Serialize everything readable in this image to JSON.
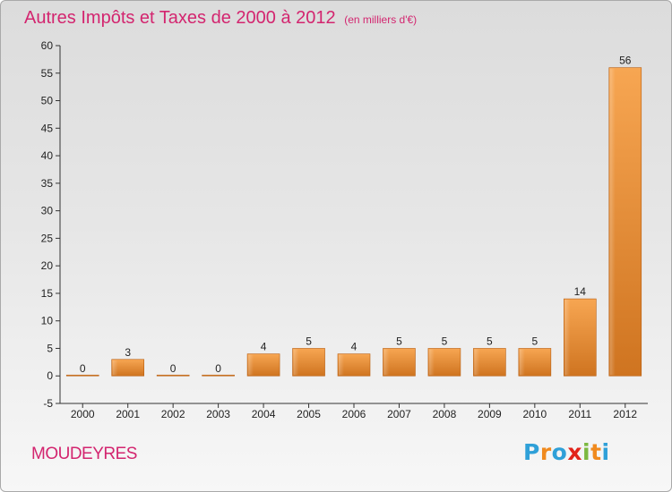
{
  "chart_data": {
    "type": "bar",
    "title": "Autres Impôts et Taxes de 2000 à 2012",
    "subtitle": "(en milliers d'€)",
    "categories": [
      "2000",
      "2001",
      "2002",
      "2003",
      "2004",
      "2005",
      "2006",
      "2007",
      "2008",
      "2009",
      "2010",
      "2011",
      "2012"
    ],
    "values": [
      0,
      3,
      0,
      0,
      4,
      5,
      4,
      5,
      5,
      5,
      5,
      14,
      56
    ],
    "ylim": [
      -5,
      60
    ],
    "yticks": [
      -5,
      0,
      5,
      10,
      15,
      20,
      25,
      30,
      35,
      40,
      45,
      50,
      55,
      60
    ],
    "grid": false,
    "bar_color": "#f2983a",
    "bar_color_dark": "#c96a17"
  },
  "footer": {
    "commune": "MOUDEYRES",
    "logo_letters": [
      "P",
      "r",
      "o",
      "x",
      "i",
      "t",
      "i"
    ],
    "logo_colors": [
      "#2fa0d8",
      "#f08a1e",
      "#2fa0d8",
      "#e2231a",
      "#7cb940",
      "#f08a1e",
      "#2fa0d8"
    ]
  }
}
